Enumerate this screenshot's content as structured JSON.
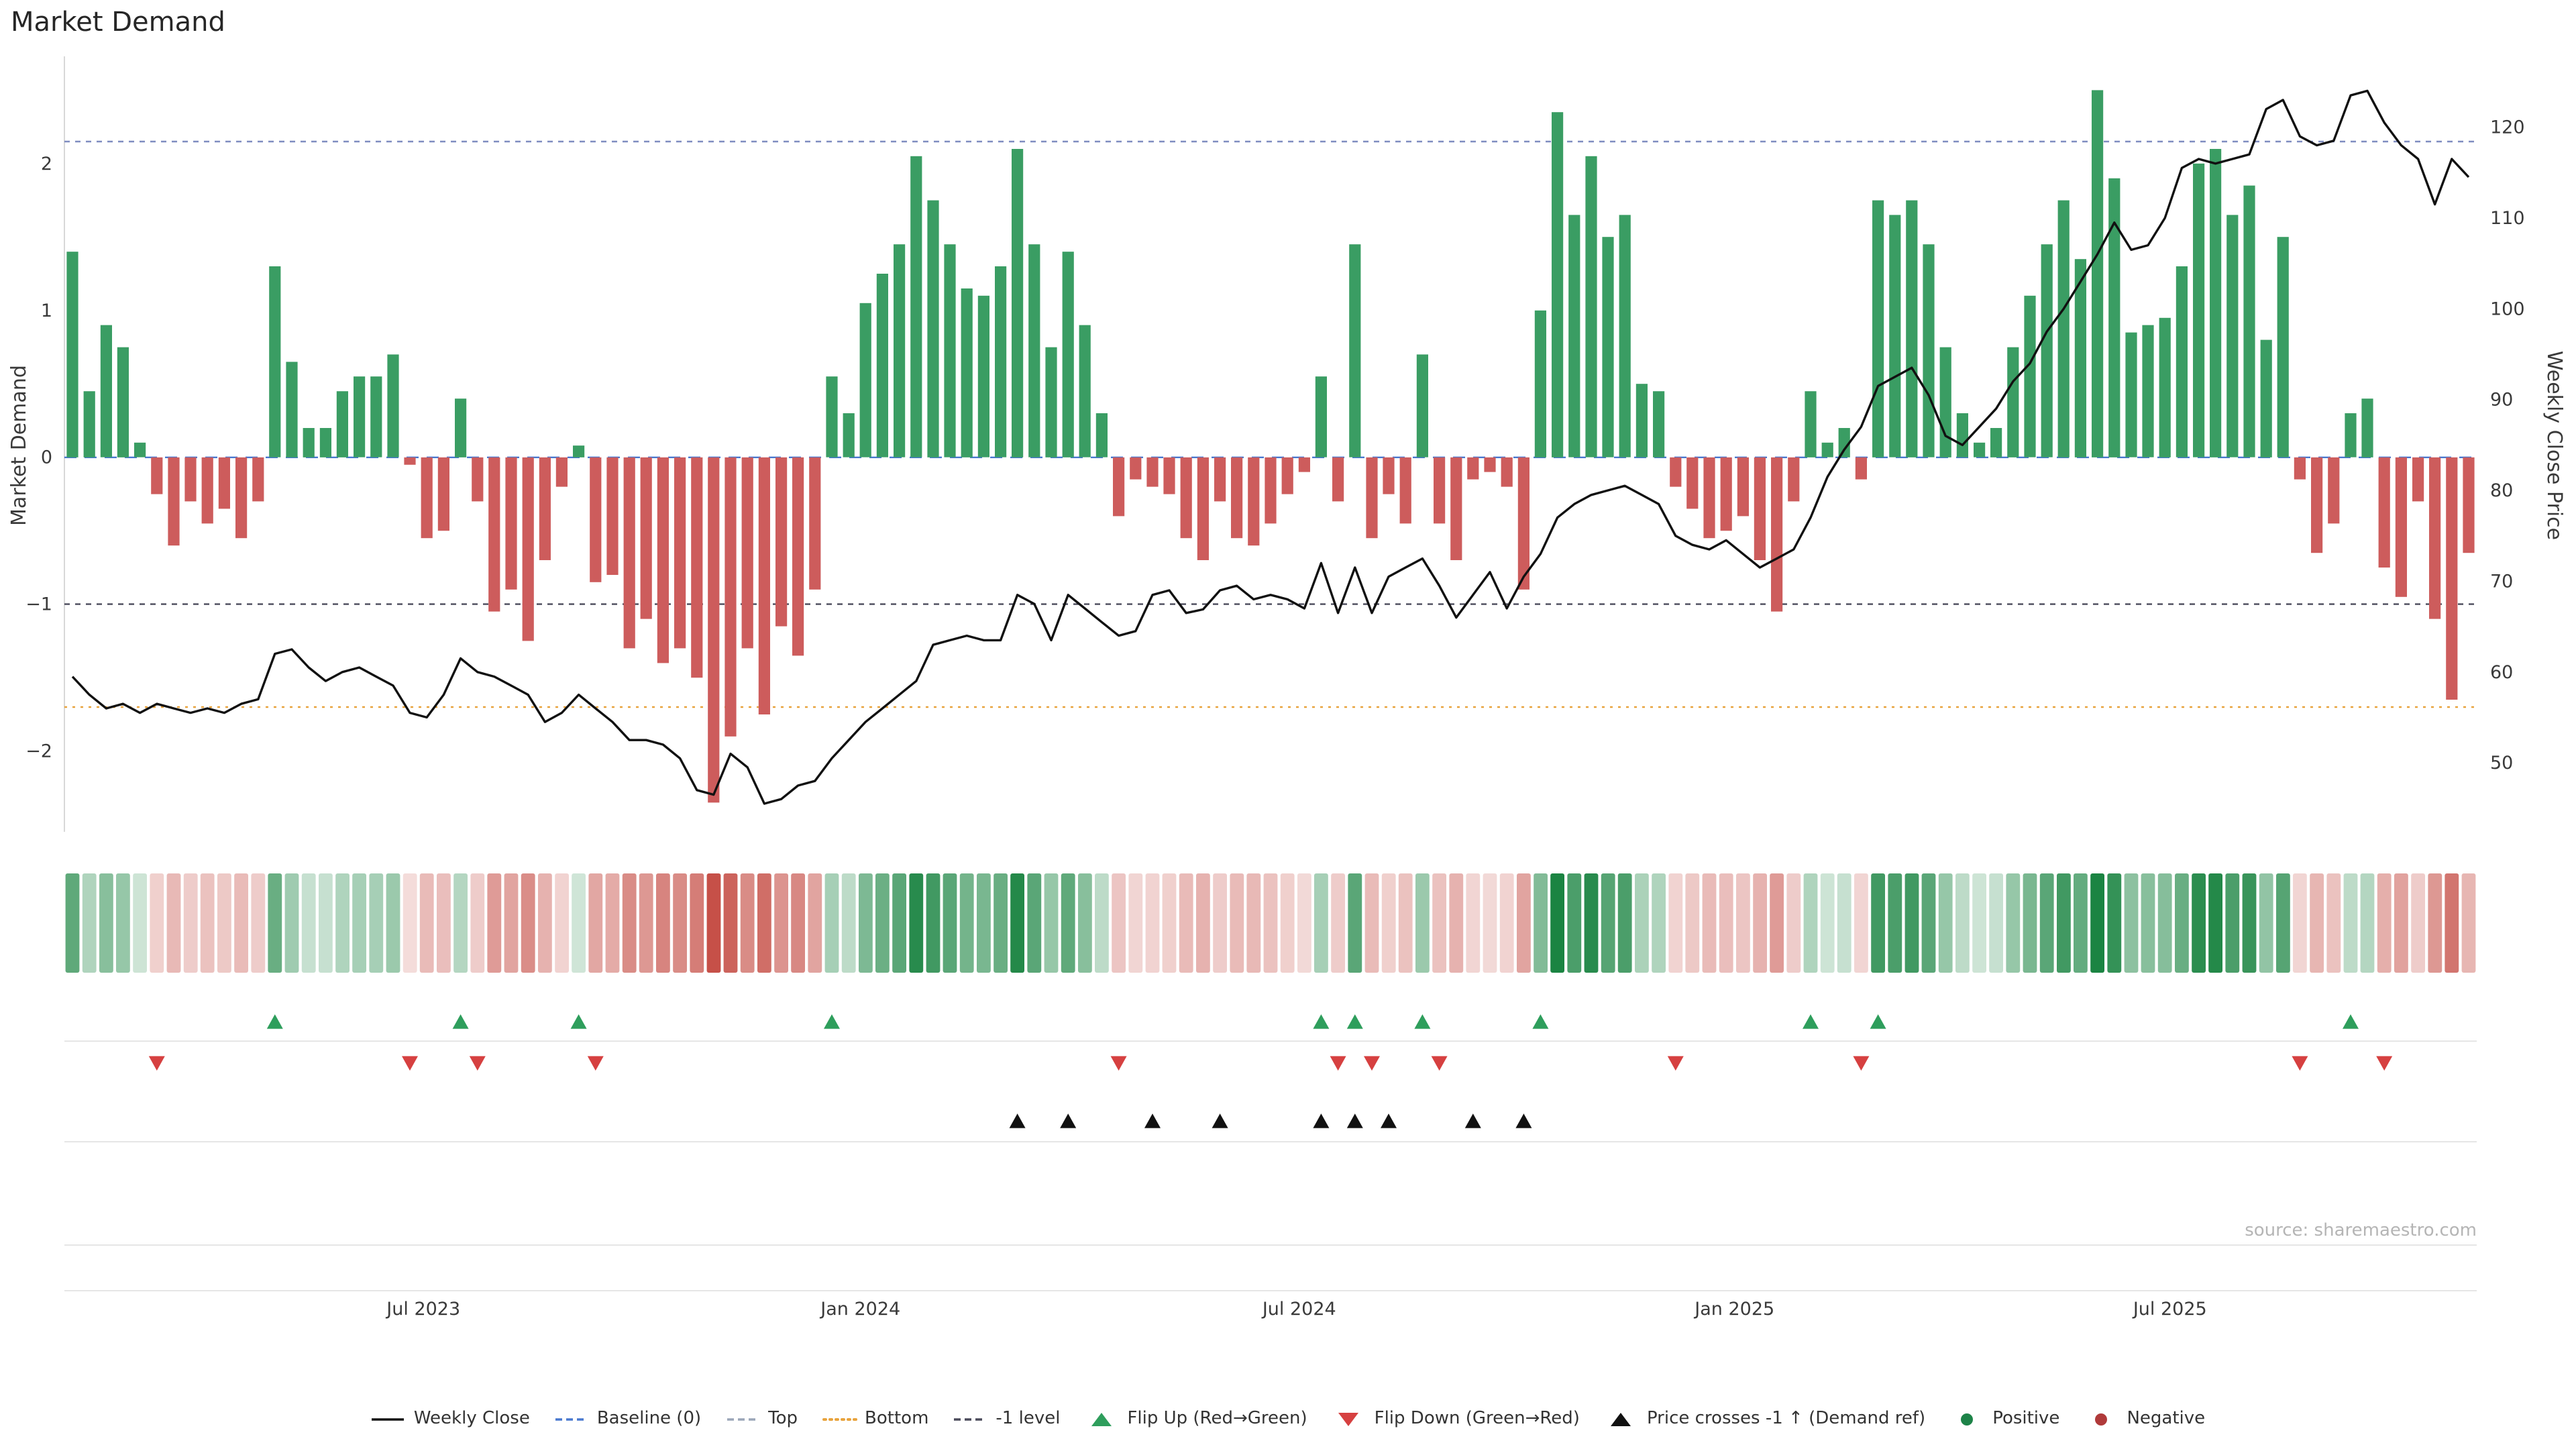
{
  "title": "Market Demand",
  "source": "source: sharemaestro.com",
  "axes": {
    "left": {
      "label": "Market Demand",
      "ticks": [
        2,
        1,
        0,
        -1,
        -2
      ]
    },
    "right": {
      "label": "Weekly Close Price",
      "ticks": [
        120,
        110,
        100,
        90,
        80,
        70,
        60,
        50
      ]
    },
    "x": {
      "ticks": [
        {
          "label": "Jul 2023",
          "pos": 20.8
        },
        {
          "label": "Jan 2024",
          "pos": 46.7
        },
        {
          "label": "Jul 2024",
          "pos": 72.7
        },
        {
          "label": "Jan 2025",
          "pos": 98.5
        },
        {
          "label": "Jul 2025",
          "pos": 124.3
        }
      ]
    }
  },
  "colors": {
    "positive": "#3a9d63",
    "negative": "#cd5c5c",
    "price_line": "#111111",
    "baseline": "#4878cf",
    "top_line": "#7f8cc0",
    "bottom_line": "#e8a33d",
    "minus1_line": "#4a4a5a",
    "flip_up": "#2e9e5c",
    "flip_down": "#d64040",
    "price_cross": "#111111",
    "heat_pos": "27,132,66",
    "heat_neg": "198,80,72",
    "grid": "#e6e6e6",
    "tick_text": "#3a3a3a"
  },
  "chart_data": {
    "type": "bar",
    "title": "Market Demand",
    "x_tick_labels": [
      "Jul 2023",
      "Jan 2024",
      "Jul 2024",
      "Jan 2025",
      "Jul 2025"
    ],
    "left_ylabel": "Market Demand",
    "right_ylabel": "Weekly Close Price",
    "left_ylim": [
      -2.55,
      2.73
    ],
    "right_ylim": [
      42.4,
      127.8
    ],
    "reference_lines": {
      "baseline": 0,
      "top": 2.15,
      "bottom": -1.7,
      "minus_one": -1
    },
    "series": [
      {
        "name": "Market Demand",
        "type": "bar",
        "axis": "left",
        "values": [
          1.4,
          0.45,
          0.9,
          0.75,
          0.1,
          -0.25,
          -0.6,
          -0.3,
          -0.45,
          -0.35,
          -0.55,
          -0.3,
          1.3,
          0.65,
          0.2,
          0.2,
          0.45,
          0.55,
          0.55,
          0.7,
          -0.05,
          -0.55,
          -0.5,
          0.4,
          -0.3,
          -1.05,
          -0.9,
          -1.25,
          -0.7,
          -0.2,
          0.08,
          -0.85,
          -0.8,
          -1.3,
          -1.1,
          -1.4,
          -1.3,
          -1.5,
          -2.35,
          -1.9,
          -1.3,
          -1.75,
          -1.15,
          -1.35,
          -0.9,
          0.55,
          0.3,
          1.05,
          1.25,
          1.45,
          2.05,
          1.75,
          1.45,
          1.15,
          1.1,
          1.3,
          2.1,
          1.45,
          0.75,
          1.4,
          0.9,
          0.3,
          -0.4,
          -0.15,
          -0.2,
          -0.25,
          -0.55,
          -0.7,
          -0.3,
          -0.55,
          -0.6,
          -0.45,
          -0.25,
          -0.1,
          0.55,
          -0.3,
          1.45,
          -0.55,
          -0.25,
          -0.45,
          0.7,
          -0.45,
          -0.7,
          -0.15,
          -0.1,
          -0.2,
          -0.9,
          1.0,
          2.35,
          1.65,
          2.05,
          1.5,
          1.65,
          0.5,
          0.45,
          -0.2,
          -0.35,
          -0.55,
          -0.5,
          -0.4,
          -0.7,
          -1.05,
          -0.3,
          0.45,
          0.1,
          0.2,
          -0.15,
          1.75,
          1.65,
          1.75,
          1.45,
          0.75,
          0.3,
          0.1,
          0.2,
          0.75,
          1.1,
          1.45,
          1.75,
          1.35,
          2.5,
          1.9,
          0.85,
          0.9,
          0.95,
          1.3,
          2.0,
          2.1,
          1.65,
          1.85,
          0.8,
          1.5,
          -0.15,
          -0.65,
          -0.45,
          0.3,
          0.4,
          -0.75,
          -0.95,
          -0.3,
          -1.1,
          -1.65,
          -0.65
        ]
      },
      {
        "name": "Weekly Close",
        "type": "line",
        "axis": "right",
        "values": [
          59.5,
          57.5,
          56,
          56.5,
          55.5,
          56.5,
          56,
          55.5,
          56,
          55.5,
          56.5,
          57,
          62,
          62.5,
          60.5,
          59,
          60,
          60.5,
          59.5,
          58.5,
          55.5,
          55,
          57.5,
          61.5,
          60,
          59.5,
          58.5,
          57.5,
          54.5,
          55.5,
          57.5,
          56,
          54.5,
          52.5,
          52.5,
          52,
          50.5,
          47,
          46.5,
          51,
          49.5,
          45.5,
          46,
          47.5,
          48,
          50.5,
          52.5,
          54.5,
          56,
          57.5,
          59,
          63,
          63.5,
          64,
          63.5,
          63.5,
          68.5,
          67.5,
          63.5,
          68.5,
          67,
          65.5,
          64,
          64.5,
          68.5,
          69,
          66.5,
          66.9,
          69,
          69.5,
          68,
          68.5,
          68,
          67,
          72,
          66.5,
          71.5,
          66.5,
          70.5,
          71.5,
          72.5,
          69.5,
          66,
          68.5,
          71,
          67,
          70.5,
          73,
          77,
          78.5,
          79.5,
          80,
          80.5,
          79.5,
          78.5,
          75,
          74,
          73.5,
          74.5,
          73,
          71.5,
          72.5,
          73.5,
          77,
          81.5,
          84.5,
          87,
          91.5,
          92.5,
          93.5,
          90.5,
          86,
          85,
          87,
          89,
          92,
          94,
          97.5,
          100,
          103,
          106,
          109.5,
          106.5,
          107,
          110,
          115.5,
          116.5,
          116,
          116.5,
          117,
          122,
          123,
          119,
          118,
          118.5,
          123.5,
          124,
          120.5,
          118,
          116.5,
          111.5,
          116.5,
          114.5
        ]
      }
    ],
    "markers": {
      "flip_up_indices": [
        12,
        23,
        30,
        45,
        74,
        76,
        80,
        87,
        103,
        107,
        135
      ],
      "flip_down_indices": [
        5,
        20,
        24,
        31,
        62,
        75,
        77,
        81,
        95,
        106,
        132,
        137
      ],
      "price_cross_indices": [
        56,
        59,
        64,
        68,
        74,
        76,
        78,
        83,
        86
      ]
    },
    "heatmap": {
      "source_series": "Market Demand",
      "encoding": "green = positive, red = negative, intensity = magnitude"
    },
    "legend_position": "bottom"
  },
  "legend": {
    "items": [
      {
        "label": "Weekly Close",
        "swatch": "line",
        "color": "#111111"
      },
      {
        "label": "Baseline (0)",
        "swatch": "dashed",
        "color": "#4878cf"
      },
      {
        "label": "Top",
        "swatch": "dashed",
        "color": "#9aa5b8"
      },
      {
        "label": "Bottom",
        "swatch": "dotted",
        "color": "#e8a33d"
      },
      {
        "label": "-1 level",
        "swatch": "dashed",
        "color": "#4a4a5a"
      },
      {
        "label": "Flip Up (Red→Green)",
        "swatch": "triangle-up",
        "color": "#2e9e5c"
      },
      {
        "label": "Flip Down (Green→Red)",
        "swatch": "triangle-down",
        "color": "#d64040"
      },
      {
        "label": "Price crosses -1 ↑ (Demand ref)",
        "swatch": "triangle-up",
        "color": "#111111"
      },
      {
        "label": "Positive",
        "swatch": "dot",
        "color": "#1d8348"
      },
      {
        "label": "Negative",
        "swatch": "dot",
        "color": "#b03a3a"
      }
    ]
  }
}
